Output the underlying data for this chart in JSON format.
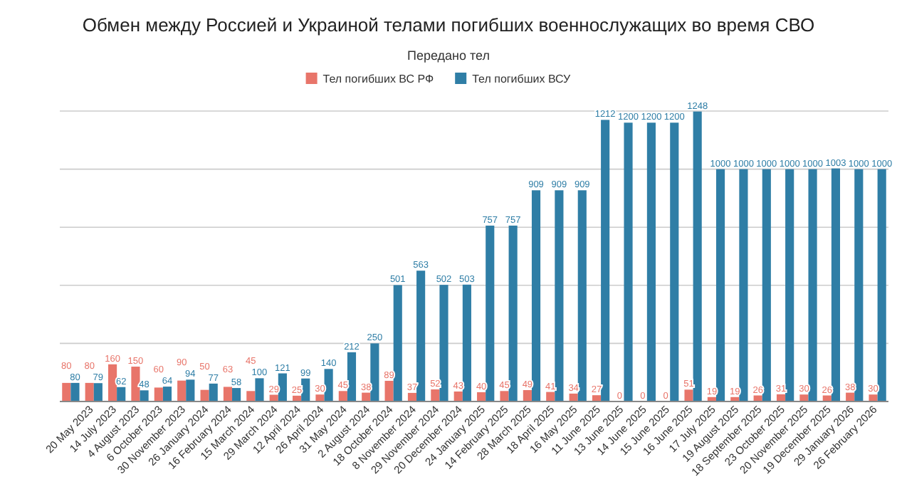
{
  "chart_data": {
    "type": "bar",
    "title": "Обмен между Россией и Украиной телами погибших военнослужащих во время СВО",
    "subtitle": "Передано тел",
    "categories": [
      null,
      "20 May 2023",
      "14 July 2023",
      "4 August 2023",
      "6 October 2023",
      "30 November 2023",
      "26 January 2024",
      "16 February 2024",
      "15 March 2024",
      "29 March 2024",
      "12 April 2024",
      "26 April 2024",
      "31 May 2024",
      "2 August 2024",
      "18 October 2024",
      "8 November 2024",
      "29 November 2024",
      "20 December 2024",
      "24 January 2025",
      "14 February 2025",
      "28 March 2025",
      "18 April 2025",
      "16 May 2025",
      "11 June 2025",
      "13 June 2025",
      "14 June 2025",
      "15 June 2025",
      "16 June 2025",
      "17 July 2025",
      "19 August 2025",
      "18 September 2025",
      "23 October 2025",
      "20 November 2025",
      "19 December 2025",
      "29 January 2026",
      "26 February 2026"
    ],
    "series": [
      {
        "name": "Тел погибших ВС РФ",
        "color": "#e8756a",
        "values": [
          80,
          80,
          160,
          150,
          60,
          90,
          50,
          63,
          45,
          29,
          25,
          30,
          45,
          38,
          89,
          37,
          52,
          43,
          40,
          45,
          49,
          41,
          34,
          27,
          0,
          0,
          0,
          51,
          19,
          19,
          26,
          31,
          30,
          26,
          38,
          30
        ]
      },
      {
        "name": "Тел погибших ВСУ",
        "color": "#2f7ea6",
        "values": [
          80,
          79,
          62,
          48,
          64,
          94,
          77,
          58,
          100,
          121,
          99,
          140,
          212,
          250,
          501,
          563,
          502,
          503,
          757,
          757,
          909,
          909,
          909,
          1212,
          1200,
          1200,
          1200,
          1248,
          1000,
          1000,
          1000,
          1000,
          1000,
          1003,
          1000,
          1000
        ]
      }
    ],
    "ylim": [
      0,
      1250
    ],
    "yticks": [
      {
        "value": 0,
        "label": null
      },
      {
        "value": 250,
        "label": null
      },
      {
        "value": 500,
        "label": null
      },
      {
        "value": 750,
        "label": null
      },
      {
        "value": 1000,
        "label": null
      },
      {
        "value": 1250,
        "label": null
      }
    ],
    "tick_labels": "x",
    "grid": "y",
    "legend": "top",
    "data_labels": true
  }
}
